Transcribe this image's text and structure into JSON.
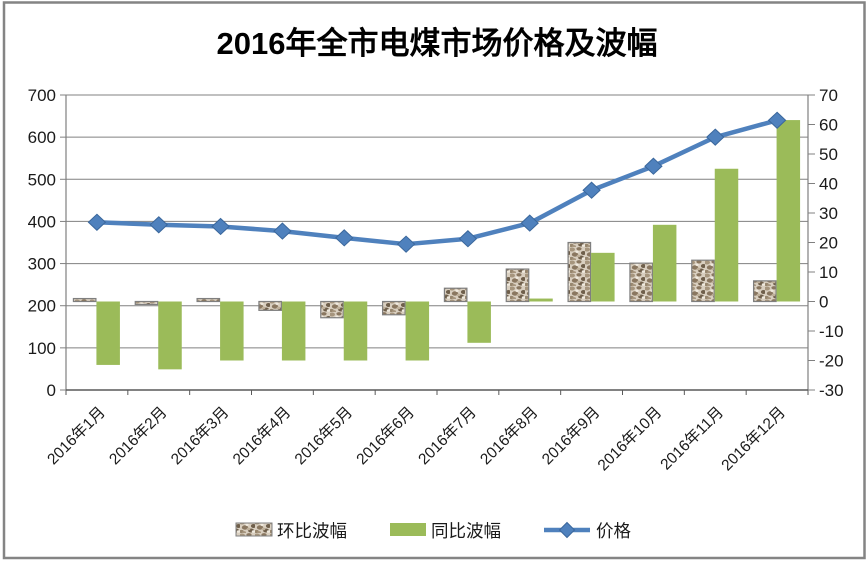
{
  "chart_data": {
    "type": "combo",
    "title": "2016年全市电煤市场价格及波幅",
    "categories": [
      "2016年1月",
      "2016年2月",
      "2016年3月",
      "2016年4月",
      "2016年5月",
      "2016年6月",
      "2016年7月",
      "2016年8月",
      "2016年9月",
      "2016年10月",
      "2016年11月",
      "2016年12月"
    ],
    "series": [
      {
        "name": "环比波幅",
        "type": "bar",
        "axis": "right",
        "style": "textured",
        "values": [
          1,
          -1,
          1,
          -3,
          -5.5,
          -4.5,
          4.5,
          11,
          20,
          13,
          14,
          7
        ]
      },
      {
        "name": "同比波幅",
        "type": "bar",
        "axis": "right",
        "style": "solid",
        "color": "#9BBB59",
        "values": [
          -21.5,
          -23,
          -20,
          -20,
          -20,
          -20,
          -14,
          1,
          16.5,
          26,
          45,
          61.5
        ]
      },
      {
        "name": "价格",
        "type": "line",
        "axis": "left",
        "color": "#4F81BD",
        "marker": "diamond",
        "values": [
          398,
          392,
          388,
          377,
          361,
          346,
          359,
          396,
          474,
          531,
          600,
          640
        ]
      }
    ],
    "left_axis": {
      "min": 0,
      "max": 700,
      "step": 100,
      "labels": [
        "0",
        "100",
        "200",
        "300",
        "400",
        "500",
        "600",
        "700"
      ]
    },
    "right_axis": {
      "min": -30,
      "max": 70,
      "step": 10,
      "labels": [
        "-30",
        "-20",
        "-10",
        "0",
        "10",
        "20",
        "30",
        "40",
        "50",
        "60",
        "70"
      ]
    },
    "grid": true,
    "legend_position": "bottom",
    "colors": {
      "price_line": "#4F81BD",
      "price_line_edge": "#3A679C",
      "bar_green": "#9BBB59",
      "texture_base": "#D9CFC0",
      "texture_speckles": [
        "#A6957D",
        "#8A7760",
        "#6F5F4B",
        "#BFB09A",
        "#F0EADF",
        "#97866E"
      ],
      "bar_border": "#7F7F7F",
      "gridline": "#808080",
      "axis_line": "#595959",
      "text": "#1A1A1A",
      "frame_border": "#848484"
    }
  }
}
